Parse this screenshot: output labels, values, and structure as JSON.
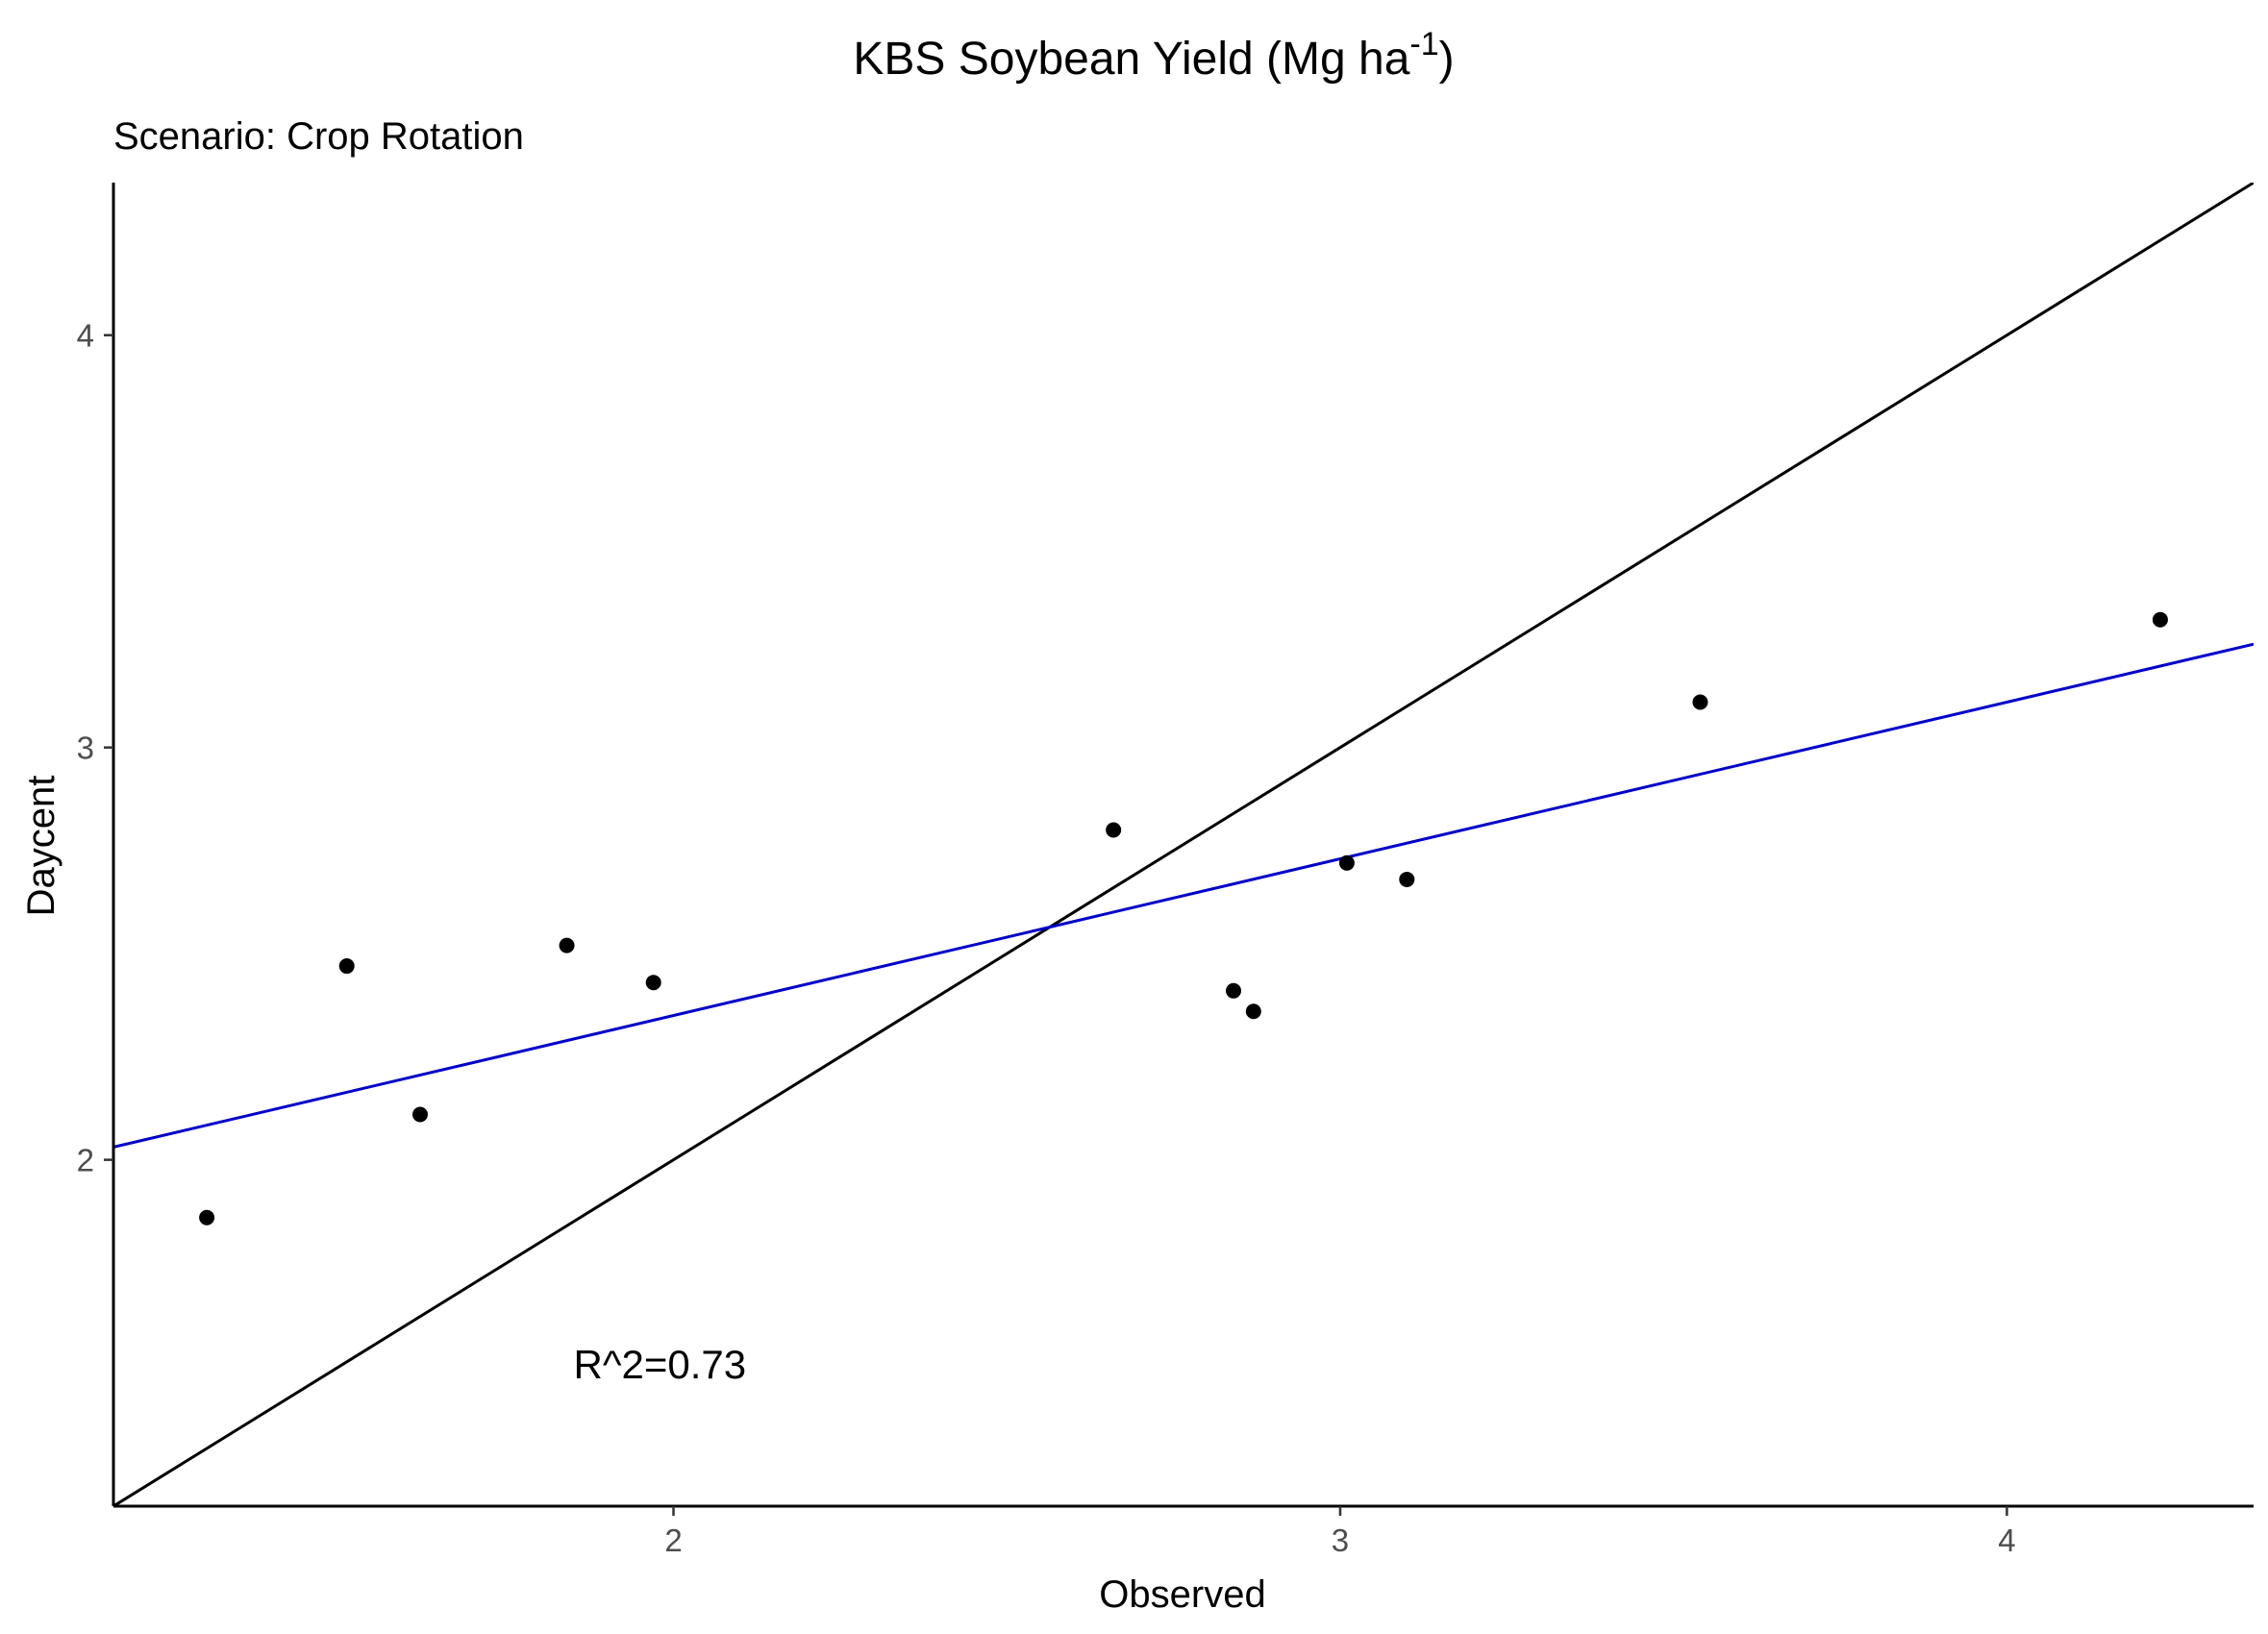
{
  "chart_data": {
    "type": "scatter",
    "title": "KBS Soybean Yield (Mg ha",
    "title_superscript": "-1",
    "title_close": ")",
    "subtitle": "Scenario: Crop Rotation",
    "xlabel": "Observed",
    "ylabel": "Daycent",
    "xlim": [
      1.16,
      4.37
    ],
    "ylim": [
      1.16,
      4.37
    ],
    "xticks": [
      2,
      3,
      4
    ],
    "yticks": [
      2,
      3,
      4
    ],
    "points": [
      {
        "x": 1.3,
        "y": 1.86
      },
      {
        "x": 1.51,
        "y": 2.47
      },
      {
        "x": 1.62,
        "y": 2.11
      },
      {
        "x": 1.84,
        "y": 2.52
      },
      {
        "x": 1.97,
        "y": 2.43
      },
      {
        "x": 2.66,
        "y": 2.8
      },
      {
        "x": 2.84,
        "y": 2.41
      },
      {
        "x": 2.87,
        "y": 2.36
      },
      {
        "x": 3.01,
        "y": 2.72
      },
      {
        "x": 3.1,
        "y": 2.68
      },
      {
        "x": 3.54,
        "y": 3.11
      },
      {
        "x": 4.23,
        "y": 3.31
      }
    ],
    "reference_line": {
      "slope": 1,
      "intercept": 0,
      "color": "#000000"
    },
    "fit_line": {
      "slope": 0.38,
      "intercept": 1.59,
      "color": "#0000cc"
    },
    "annotation": {
      "text": "R^2=0.73",
      "x": 1.85,
      "y": 1.47
    },
    "grid": false,
    "legend": "none"
  }
}
